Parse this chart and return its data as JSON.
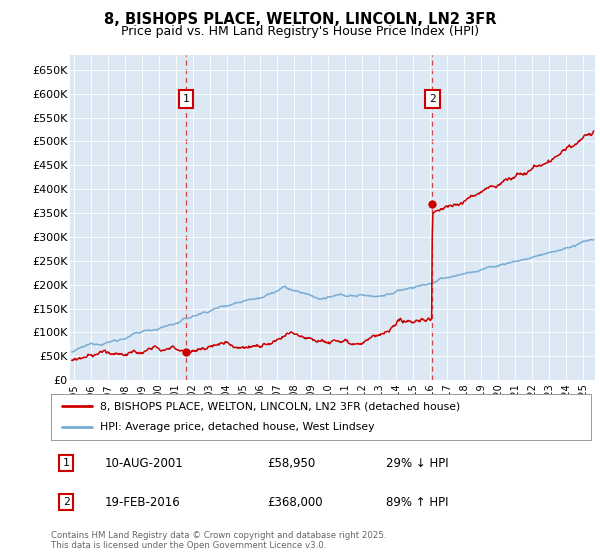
{
  "title": "8, BISHOPS PLACE, WELTON, LINCOLN, LN2 3FR",
  "subtitle": "Price paid vs. HM Land Registry's House Price Index (HPI)",
  "ylim": [
    0,
    680000
  ],
  "yticks": [
    0,
    50000,
    100000,
    150000,
    200000,
    250000,
    300000,
    350000,
    400000,
    450000,
    500000,
    550000,
    600000,
    650000
  ],
  "ytick_labels": [
    "£0",
    "£50K",
    "£100K",
    "£150K",
    "£200K",
    "£250K",
    "£300K",
    "£350K",
    "£400K",
    "£450K",
    "£500K",
    "£550K",
    "£600K",
    "£650K"
  ],
  "plot_bg_color": "#dce9f5",
  "fig_bg_color": "#ffffff",
  "red_color": "#cc0000",
  "blue_color": "#7aadd4",
  "t1_x": 2001.62,
  "t1_y": 58950,
  "t2_x": 2016.12,
  "t2_y": 368000,
  "annotation1_date": "10-AUG-2001",
  "annotation1_price": "£58,950",
  "annotation1_hpi": "29% ↓ HPI",
  "annotation2_date": "19-FEB-2016",
  "annotation2_price": "£368,000",
  "annotation2_hpi": "89% ↑ HPI",
  "legend_label_red": "8, BISHOPS PLACE, WELTON, LINCOLN, LN2 3FR (detached house)",
  "legend_label_blue": "HPI: Average price, detached house, West Lindsey",
  "footer": "Contains HM Land Registry data © Crown copyright and database right 2025.\nThis data is licensed under the Open Government Licence v3.0.",
  "xmin": 1994.8,
  "xmax": 2025.7
}
